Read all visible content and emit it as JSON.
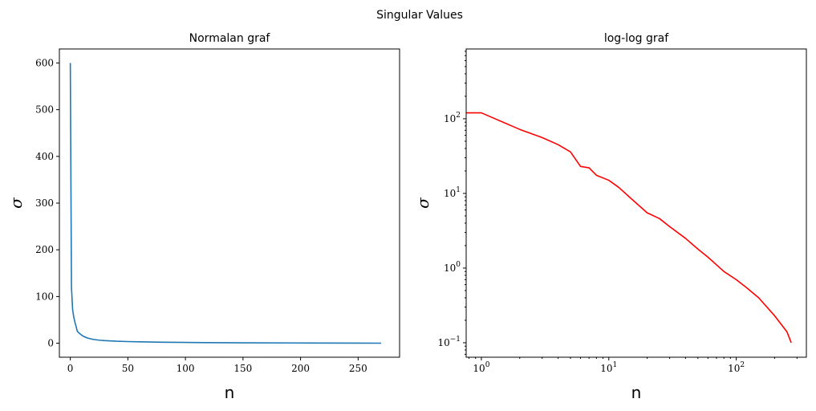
{
  "figure": {
    "suptitle": "Singular Values"
  },
  "chart_data": [
    {
      "type": "line",
      "title": "Normalan graf",
      "xlabel": "n",
      "ylabel": "σ",
      "xscale": "linear",
      "yscale": "linear",
      "xlim": [
        -9.5,
        286
      ],
      "ylim": [
        -30,
        630
      ],
      "xticks": [
        0,
        50,
        100,
        150,
        200,
        250
      ],
      "yticks": [
        0,
        100,
        200,
        300,
        400,
        500,
        600
      ],
      "xtick_labels": [
        "0",
        "50",
        "100",
        "150",
        "200",
        "250"
      ],
      "ytick_labels": [
        "0",
        "100",
        "200",
        "300",
        "400",
        "500",
        "600"
      ],
      "grid": false,
      "series": [
        {
          "color": "#1f77b4",
          "x": [
            0,
            1,
            2,
            3,
            4,
            5,
            6,
            7,
            8,
            10,
            12,
            15,
            20,
            25,
            30,
            40,
            50,
            60,
            80,
            100,
            120,
            150,
            200,
            250,
            270
          ],
          "y": [
            600,
            120,
            72,
            56,
            45,
            36,
            26,
            23,
            21,
            17,
            14,
            11,
            8,
            6.5,
            5.5,
            4.2,
            3.5,
            3.0,
            2.2,
            1.6,
            1.2,
            0.9,
            0.5,
            0.25,
            0.1
          ]
        }
      ]
    },
    {
      "type": "line",
      "title": "log-log graf",
      "xlabel": "n",
      "ylabel": "σ",
      "xscale": "log",
      "yscale": "log",
      "xlim": [
        0.76,
        355
      ],
      "ylim": [
        0.064,
        860
      ],
      "xticks": [
        1,
        10,
        100
      ],
      "yticks": [
        0.1,
        1,
        10,
        100
      ],
      "xtick_labels": [
        {
          "base": "10",
          "exp": "0"
        },
        {
          "base": "10",
          "exp": "1"
        },
        {
          "base": "10",
          "exp": "2"
        }
      ],
      "ytick_labels": [
        {
          "base": "10",
          "exp": "−1"
        },
        {
          "base": "10",
          "exp": "0"
        },
        {
          "base": "10",
          "exp": "1"
        },
        {
          "base": "10",
          "exp": "2"
        }
      ],
      "grid": false,
      "series": [
        {
          "color": "#ff0000",
          "x": [
            0.76,
            1,
            2,
            3,
            4,
            5,
            6,
            7,
            8,
            10,
            12,
            15,
            20,
            25,
            30,
            40,
            50,
            60,
            80,
            100,
            120,
            150,
            200,
            250,
            270
          ],
          "y": [
            120,
            120,
            72,
            56,
            45,
            36,
            23,
            22,
            17.5,
            15,
            12,
            8.5,
            5.5,
            4.6,
            3.6,
            2.5,
            1.8,
            1.4,
            0.9,
            0.7,
            0.55,
            0.4,
            0.23,
            0.14,
            0.1
          ]
        }
      ]
    }
  ]
}
